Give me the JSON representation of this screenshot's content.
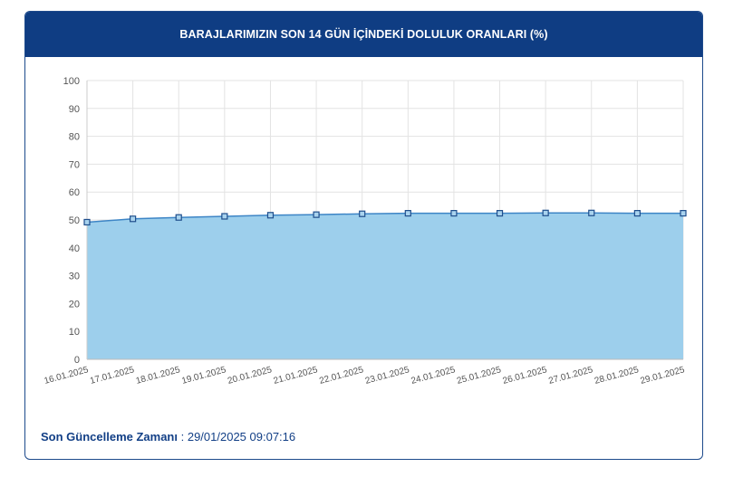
{
  "header": {
    "title": "BARAJLARIMIZIN SON 14 GÜN İÇİNDEKİ DOLULUK ORANLARI (%)"
  },
  "footer": {
    "label": "Son Güncelleme Zamanı",
    "separator": " : ",
    "value": "29/01/2025 09:07:16"
  },
  "colors": {
    "header_bg": "#0f3d83",
    "area_fill": "#9dcfec",
    "line": "#3d85c6",
    "marker_fill": "#a9d3ee",
    "marker_stroke": "#1f4e8c"
  },
  "chart_data": {
    "type": "area",
    "categories": [
      "16.01.2025",
      "17.01.2025",
      "18.01.2025",
      "19.01.2025",
      "20.01.2025",
      "21.01.2025",
      "22.01.2025",
      "23.01.2025",
      "24.01.2025",
      "25.01.2025",
      "26.01.2025",
      "27.01.2025",
      "28.01.2025",
      "29.01.2025"
    ],
    "series": [
      {
        "values": [
          49.2,
          50.4,
          50.9,
          51.3,
          51.7,
          51.9,
          52.2,
          52.4,
          52.4,
          52.4,
          52.5,
          52.5,
          52.4,
          52.4
        ]
      }
    ],
    "yticks": [
      0,
      10,
      20,
      30,
      40,
      50,
      60,
      70,
      80,
      90,
      100
    ],
    "ylim": [
      0,
      100
    ],
    "grid": true,
    "legend": "none"
  }
}
